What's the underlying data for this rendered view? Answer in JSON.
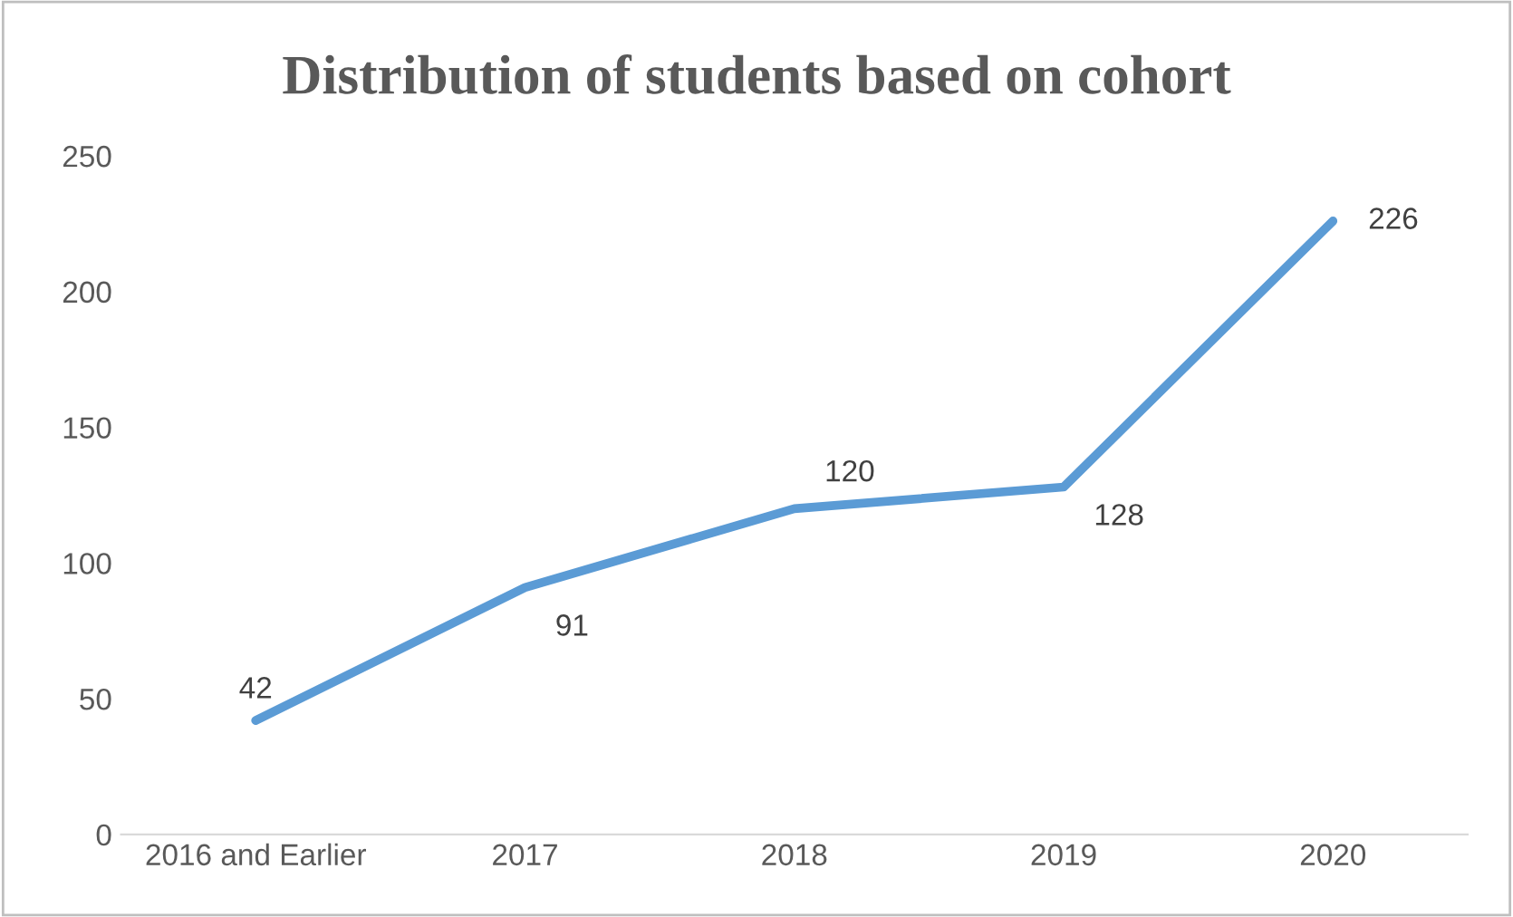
{
  "chart_data": {
    "type": "line",
    "title": "Distribution of students based on cohort",
    "categories": [
      "2016 and Earlier",
      "2017",
      "2018",
      "2019",
      "2020"
    ],
    "series": [
      {
        "color": "#5b9bd5",
        "values": [
          42,
          91,
          120,
          128,
          226
        ]
      }
    ],
    "ylim": [
      0,
      250
    ],
    "yticks": [
      0,
      50,
      100,
      150,
      200,
      250
    ],
    "grid": false,
    "legend": false,
    "marker": "none",
    "line_style": "solid",
    "data_labels": true
  }
}
